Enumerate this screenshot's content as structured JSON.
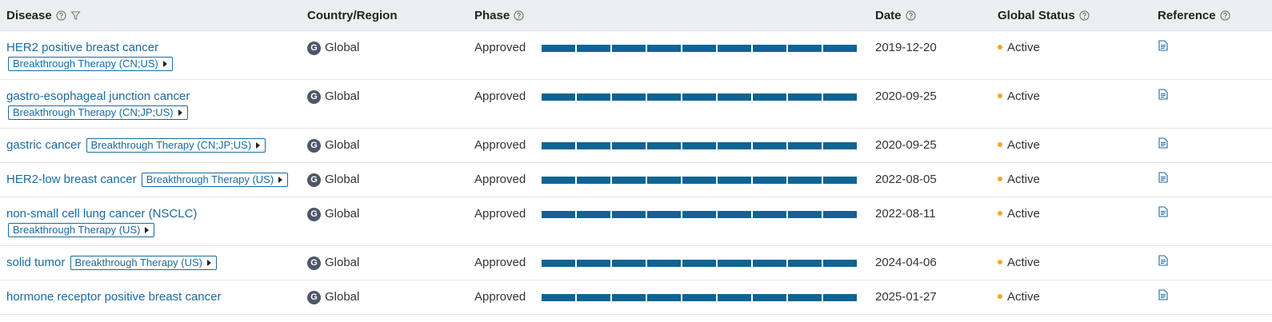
{
  "table": {
    "headers": [
      "Disease",
      "Country/Region",
      "Phase",
      "Date",
      "Global Status",
      "Reference"
    ],
    "rows": [
      {
        "disease": "HER2 positive breast cancer",
        "tag": "Breakthrough Therapy (CN;US)",
        "region_icon": "G",
        "region": "Global",
        "phase": "Approved",
        "date": "2019-12-20",
        "status": "Active"
      },
      {
        "disease": "gastro-esophageal junction cancer",
        "tag": "Breakthrough Therapy (CN;JP;US)",
        "region_icon": "G",
        "region": "Global",
        "phase": "Approved",
        "date": "2020-09-25",
        "status": "Active"
      },
      {
        "disease": "gastric cancer",
        "tag": "Breakthrough Therapy (CN;JP;US)",
        "region_icon": "G",
        "region": "Global",
        "phase": "Approved",
        "date": "2020-09-25",
        "status": "Active"
      },
      {
        "disease": "HER2-low breast cancer",
        "tag": "Breakthrough Therapy (US)",
        "region_icon": "G",
        "region": "Global",
        "phase": "Approved",
        "date": "2022-08-05",
        "status": "Active"
      },
      {
        "disease": "non-small cell lung cancer (NSCLC)",
        "tag": "Breakthrough Therapy (US)",
        "region_icon": "G",
        "region": "Global",
        "phase": "Approved",
        "date": "2022-08-11",
        "status": "Active"
      },
      {
        "disease": "solid tumor",
        "tag": "Breakthrough Therapy (US)",
        "region_icon": "G",
        "region": "Global",
        "phase": "Approved",
        "date": "2024-04-06",
        "status": "Active"
      },
      {
        "disease": "hormone receptor positive breast cancer",
        "region_icon": "G",
        "region": "Global",
        "phase": "Approved",
        "date": "2025-01-27",
        "status": "Active"
      }
    ]
  }
}
